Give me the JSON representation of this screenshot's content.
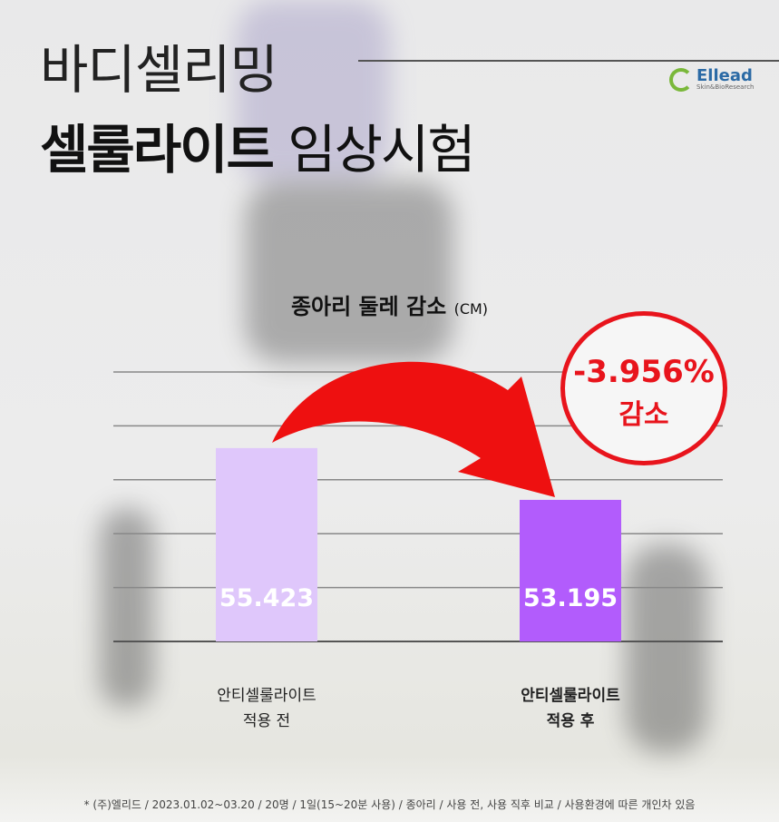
{
  "header": {
    "title_line1": "바디셀리밍",
    "title_bold": "셀룰라이트",
    "title_light": "임상시험"
  },
  "logo": {
    "name": "Ellead",
    "tagline": "Skin&BioResearch",
    "colors": [
      "#7ab83a",
      "#2b6aa5"
    ]
  },
  "badge": {
    "percent": "-3.956%",
    "label": "감소",
    "color": "#e8141c"
  },
  "chart_data": {
    "type": "bar",
    "title": "종아리 둘레 감소",
    "unit": "(CM)",
    "categories": [
      [
        "안티셀룰라이트",
        "적용 전"
      ],
      [
        "안티셀룰라이트",
        "적용 후"
      ]
    ],
    "values": [
      55.423,
      53.195
    ],
    "data_labels": [
      "55.423",
      "53.195"
    ],
    "colors": [
      "#dfc7fb",
      "#b25cfc"
    ],
    "ylim": [
      47.1,
      58.7
    ],
    "grid": true,
    "arrow": "before-to-after",
    "arrow_color": "#ee1010"
  },
  "footnote": "* (주)엘리드 / 2023.01.02~03.20 / 20명 / 1일(15~20분 사용) / 종아리 / 사용 전, 사용 직후 비교 / 사용환경에 따른 개인차 있음"
}
